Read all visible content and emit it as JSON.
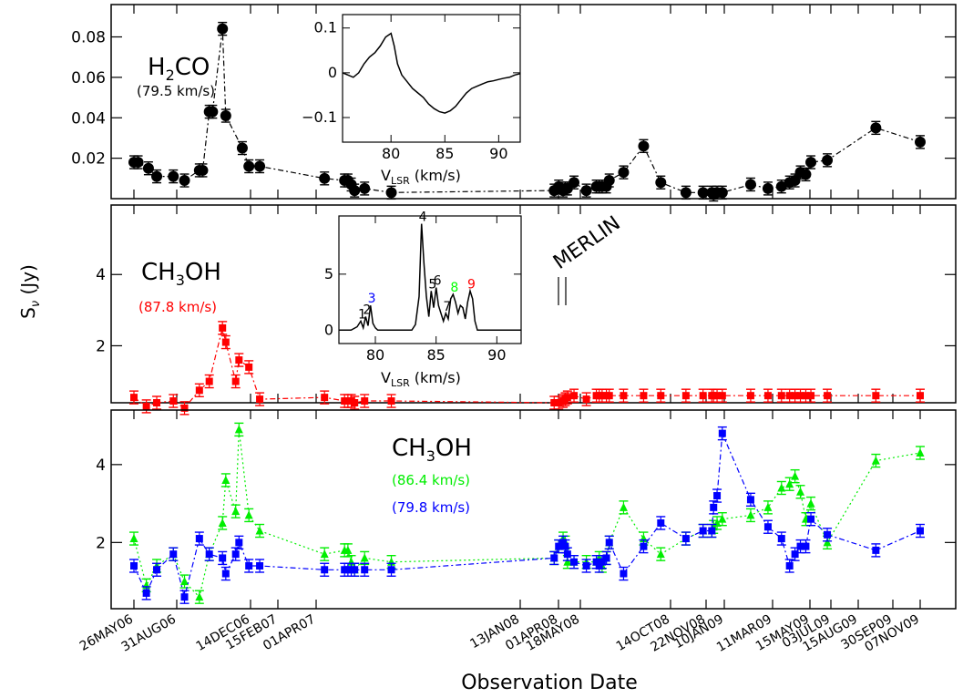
{
  "figure": {
    "ylabel": "Sν (Jy)",
    "xlabel": "Observation Date"
  },
  "chart_data": [
    {
      "id": "h2co",
      "type": "scatter",
      "label_main": "H2CO",
      "label_velocity": "(79.5 km/s)",
      "y_ticks": [
        0.02,
        0.04,
        0.06,
        0.08
      ],
      "ylim": [
        0.0,
        0.096
      ],
      "series": [
        {
          "color": "#000000",
          "marker": "circle",
          "x": [
            0,
            4,
            14,
            22,
            38,
            46,
            55,
            57,
            61,
            63,
            69,
            71,
            81,
            85,
            95,
            137,
            149,
            151,
            153,
            155,
            161,
            177,
            284,
            288,
            292,
            294,
            296,
            302,
            312,
            319,
            321,
            323,
            326,
            328,
            338,
            352,
            364,
            378,
            386,
            394,
            396,
            400,
            406,
            422,
            431,
            440,
            446,
            450,
            454,
            458,
            462,
            478,
            510,
            536
          ],
          "values": [
            0.018,
            0.018,
            0.015,
            0.011,
            0.011,
            0.009,
            0.014,
            0.014,
            0.043,
            0.043,
            0.084,
            0.041,
            0.025,
            0.016,
            0.016,
            0.01,
            0.009,
            0.009,
            0.007,
            0.004,
            0.005,
            0.003,
            0.004,
            0.006,
            0.004,
            0.005,
            0.005,
            0.008,
            0.004,
            0.006,
            0.006,
            0.006,
            0.006,
            0.009,
            0.013,
            0.026,
            0.008,
            0.003,
            0.003,
            0.003,
            0.002,
            0.003,
            0.003,
            0.007,
            0.005,
            0.006,
            0.008,
            0.009,
            0.013,
            0.012,
            0.018,
            0.019,
            0.035,
            0.028
          ]
        }
      ],
      "inset": {
        "xlabel": "VLSR (km/s)",
        "x_ticks": [
          80,
          85,
          90
        ],
        "y_ticks": [
          0.1,
          0,
          -0.1
        ],
        "xlim": [
          75.5,
          92
        ],
        "ylim": [
          -0.155,
          0.13
        ],
        "spectrum_x": [
          75.5,
          76,
          76.5,
          77,
          77.5,
          78,
          78.5,
          79,
          79.5,
          80,
          80.3,
          80.6,
          81,
          81.5,
          82,
          82.5,
          83,
          83.5,
          84,
          84.5,
          85,
          85.5,
          86,
          86.5,
          87,
          87.5,
          88,
          88.5,
          89,
          89.5,
          90,
          90.5,
          91,
          91.5,
          92
        ],
        "spectrum_y": [
          0.0,
          -0.005,
          -0.01,
          0.0,
          0.02,
          0.035,
          0.045,
          0.06,
          0.08,
          0.088,
          0.06,
          0.02,
          -0.005,
          -0.02,
          -0.035,
          -0.045,
          -0.055,
          -0.07,
          -0.08,
          -0.087,
          -0.09,
          -0.085,
          -0.075,
          -0.06,
          -0.045,
          -0.035,
          -0.03,
          -0.025,
          -0.02,
          -0.018,
          -0.015,
          -0.012,
          -0.01,
          -0.005,
          -0.002
        ]
      }
    },
    {
      "id": "ch3oh_878",
      "type": "scatter",
      "label_main": "CH3OH",
      "label_velocity": "(87.8 km/s)",
      "y_ticks": [
        2,
        4
      ],
      "ylim": [
        0.4,
        5.95
      ],
      "annotation": "MERLIN",
      "series": [
        {
          "color": "#ff0000",
          "marker": "square",
          "x": [
            0,
            12,
            22,
            38,
            46,
            55,
            61,
            69,
            71,
            77,
            79,
            85,
            95,
            137,
            149,
            151,
            153,
            155,
            161,
            177,
            284,
            288,
            292,
            294,
            296,
            302,
            312,
            319,
            321,
            323,
            326,
            328,
            338,
            352,
            364,
            378,
            386,
            394,
            396,
            400,
            406,
            422,
            431,
            440,
            446,
            450,
            454,
            458,
            462,
            478,
            510,
            536
          ],
          "values": [
            0.55,
            0.3,
            0.4,
            0.45,
            0.25,
            0.75,
            1.0,
            2.5,
            2.1,
            1.0,
            1.6,
            1.4,
            0.5,
            0.55,
            0.45,
            0.45,
            0.45,
            0.4,
            0.45,
            0.45,
            0.4,
            0.4,
            0.45,
            0.5,
            0.55,
            0.6,
            0.5,
            0.6,
            0.6,
            0.6,
            0.6,
            0.6,
            0.6,
            0.6,
            0.6,
            0.6,
            0.6,
            0.6,
            0.6,
            0.6,
            0.6,
            0.6,
            0.6,
            0.6,
            0.6,
            0.6,
            0.6,
            0.6,
            0.6,
            0.6,
            0.6,
            0.6
          ]
        }
      ],
      "inset": {
        "xlabel": "VLSR (km/s)",
        "x_ticks": [
          80,
          85,
          90
        ],
        "y_ticks": [
          0,
          5
        ],
        "xlim": [
          77,
          92
        ],
        "ylim": [
          -1.2,
          10.2
        ],
        "spectrum_x": [
          77,
          78,
          78.5,
          78.8,
          79,
          79.2,
          79.4,
          79.6,
          79.8,
          80,
          80.2,
          80.4,
          81,
          82,
          83,
          83.3,
          83.6,
          83.8,
          84,
          84.2,
          84.4,
          84.6,
          84.8,
          85,
          85.2,
          85.4,
          85.6,
          85.8,
          86,
          86.2,
          86.4,
          86.6,
          86.8,
          87,
          87.2,
          87.4,
          87.6,
          87.8,
          88,
          88.2,
          88.4,
          89,
          90,
          91,
          92
        ],
        "spectrum_y": [
          0,
          0,
          0.3,
          0.8,
          0.2,
          1.2,
          0.4,
          2.2,
          0.6,
          0.2,
          0,
          0,
          0,
          0,
          0,
          0.5,
          3,
          9.5,
          6,
          3,
          1.2,
          3.5,
          2,
          3.8,
          2.2,
          1.5,
          0.8,
          1.5,
          1,
          2.8,
          3.2,
          2.5,
          1.5,
          2.2,
          2,
          1,
          2.5,
          3.5,
          2.8,
          0.8,
          0,
          0,
          0,
          0,
          0
        ],
        "peak_labels": [
          {
            "text": "1",
            "x": 78.8,
            "y": 0.8,
            "color": "#000000"
          },
          {
            "text": "2",
            "x": 79.2,
            "y": 1.2,
            "color": "#000000"
          },
          {
            "text": "3",
            "x": 79.6,
            "y": 2.2,
            "color": "#0000ff"
          },
          {
            "text": "4",
            "x": 83.8,
            "y": 9.5,
            "color": "#000000"
          },
          {
            "text": "5",
            "x": 84.6,
            "y": 3.5,
            "color": "#000000"
          },
          {
            "text": "6",
            "x": 85,
            "y": 3.8,
            "color": "#000000"
          },
          {
            "text": "7",
            "x": 85.8,
            "y": 1.5,
            "color": "#000000"
          },
          {
            "text": "8",
            "x": 86.4,
            "y": 3.2,
            "color": "#00ff00"
          },
          {
            "text": "9",
            "x": 87.8,
            "y": 3.5,
            "color": "#ff0000"
          }
        ]
      }
    },
    {
      "id": "ch3oh_864_798",
      "type": "scatter",
      "label_main": "CH3OH",
      "y_ticks": [
        2,
        4
      ],
      "ylim": [
        0.3,
        5.4
      ],
      "series": [
        {
          "name": "(86.4 km/s)",
          "color": "#00ee00",
          "marker": "triangle",
          "x": [
            0,
            12,
            22,
            38,
            46,
            55,
            61,
            69,
            71,
            77,
            79,
            85,
            95,
            137,
            149,
            151,
            153,
            155,
            161,
            177,
            284,
            288,
            292,
            294,
            296,
            302,
            312,
            319,
            321,
            323,
            326,
            328,
            338,
            352,
            364,
            378,
            386,
            394,
            396,
            400,
            406,
            422,
            431,
            440,
            446,
            450,
            454,
            458,
            462,
            478,
            510,
            536
          ],
          "values": [
            2.1,
            0.9,
            1.4,
            1.7,
            1.0,
            0.6,
            1.7,
            2.5,
            3.6,
            2.8,
            4.9,
            2.7,
            2.3,
            1.7,
            1.8,
            1.8,
            1.5,
            1.3,
            1.6,
            1.5,
            1.6,
            1.9,
            2.1,
            2.0,
            1.5,
            1.5,
            1.5,
            1.5,
            1.6,
            1.4,
            1.6,
            2.0,
            2.9,
            2.1,
            1.7,
            2.1,
            2.3,
            2.3,
            2.4,
            2.5,
            2.6,
            2.7,
            2.9,
            3.4,
            3.5,
            3.7,
            3.3,
            2.6,
            3.0,
            2.0,
            4.1,
            4.3
          ]
        },
        {
          "name": "(79.8 km/s)",
          "color": "#0000ff",
          "marker": "square",
          "x": [
            0,
            12,
            22,
            38,
            46,
            55,
            61,
            69,
            71,
            77,
            79,
            85,
            95,
            137,
            149,
            151,
            153,
            155,
            161,
            177,
            284,
            288,
            292,
            294,
            296,
            302,
            312,
            319,
            321,
            323,
            326,
            328,
            338,
            352,
            364,
            378,
            386,
            394,
            396,
            400,
            406,
            422,
            431,
            440,
            446,
            450,
            454,
            458,
            462,
            478,
            510,
            536
          ],
          "values": [
            1.4,
            0.7,
            1.3,
            1.7,
            0.6,
            2.1,
            1.7,
            1.6,
            1.2,
            1.7,
            2.0,
            1.4,
            1.4,
            1.3,
            1.3,
            1.3,
            1.3,
            1.3,
            1.3,
            1.3,
            1.6,
            1.9,
            2.0,
            1.9,
            1.7,
            1.5,
            1.4,
            1.5,
            1.4,
            1.5,
            1.6,
            2.0,
            1.2,
            1.9,
            2.5,
            2.1,
            2.3,
            2.3,
            2.9,
            3.2,
            4.8,
            3.1,
            2.4,
            2.1,
            1.4,
            1.7,
            1.9,
            1.9,
            2.6,
            2.2,
            1.8,
            2.3
          ]
        }
      ]
    }
  ],
  "date_axis": {
    "tick_labels": [
      "26MAY06",
      "31AUG06",
      "14DEC06",
      "15FEB07",
      "01APR07",
      "13JAN08",
      "01APR08",
      "18MAY08",
      "14OCT08",
      "22NOV08",
      "10JAN09",
      "11MAR09",
      "15MAY09",
      "03JUL09",
      "15AUG09",
      "30SEP09",
      "07NOV09"
    ],
    "tick_positions": [
      0,
      97,
      202,
      265,
      310,
      597,
      676,
      723,
      871,
      910,
      959,
      1018,
      1083,
      1131,
      1174,
      1221,
      1259
    ],
    "xlim": [
      -25,
      1285
    ]
  }
}
